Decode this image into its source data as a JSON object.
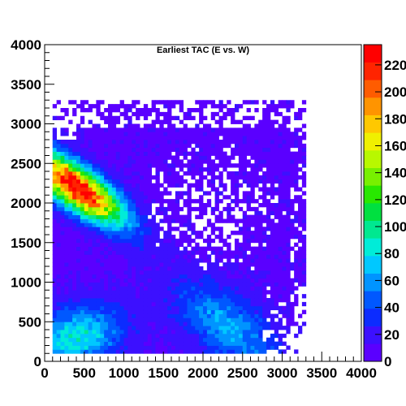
{
  "chart_data": {
    "type": "heatmap",
    "title": "Earliest TAC (E vs. W)",
    "xlabel": "",
    "ylabel": "",
    "xlim": [
      0,
      4000
    ],
    "ylim": [
      0,
      4000
    ],
    "zlim": [
      0,
      235
    ],
    "bin_size": 50,
    "data_extent": {
      "x": [
        100,
        3300
      ],
      "y": [
        100,
        3300
      ]
    },
    "x_tick_labels": [
      "0",
      "500",
      "1000",
      "1500",
      "2000",
      "2500",
      "3000",
      "3500",
      "4000"
    ],
    "y_tick_labels": [
      "0",
      "500",
      "1000",
      "1500",
      "2000",
      "2500",
      "3000",
      "3500",
      "4000"
    ],
    "z_tick_labels": [
      "0",
      "20",
      "40",
      "60",
      "80",
      "100",
      "120",
      "140",
      "160",
      "180",
      "200",
      "220"
    ],
    "colorbar_colors": [
      "#5a00ff",
      "#3c10ff",
      "#0c2cff",
      "#0058ff",
      "#0094ff",
      "#00c8ff",
      "#00ecd8",
      "#00e890",
      "#00e040",
      "#28e800",
      "#78f000",
      "#b8f800",
      "#f0f000",
      "#ffc800",
      "#ff9400",
      "#ff5c00",
      "#ff2400",
      "#ff0000"
    ],
    "hotspots": [
      {
        "label": "upper-left lobe",
        "x": 400,
        "y": 2200,
        "peak": 230
      },
      {
        "label": "bottom-left",
        "x": 380,
        "y": 300,
        "peak": 75
      },
      {
        "label": "bottom-right",
        "x": 2300,
        "y": 450,
        "peak": 55
      }
    ],
    "sparse_region": {
      "x": [
        1300,
        3300
      ],
      "y": [
        1100,
        2900
      ]
    },
    "grid": false
  }
}
